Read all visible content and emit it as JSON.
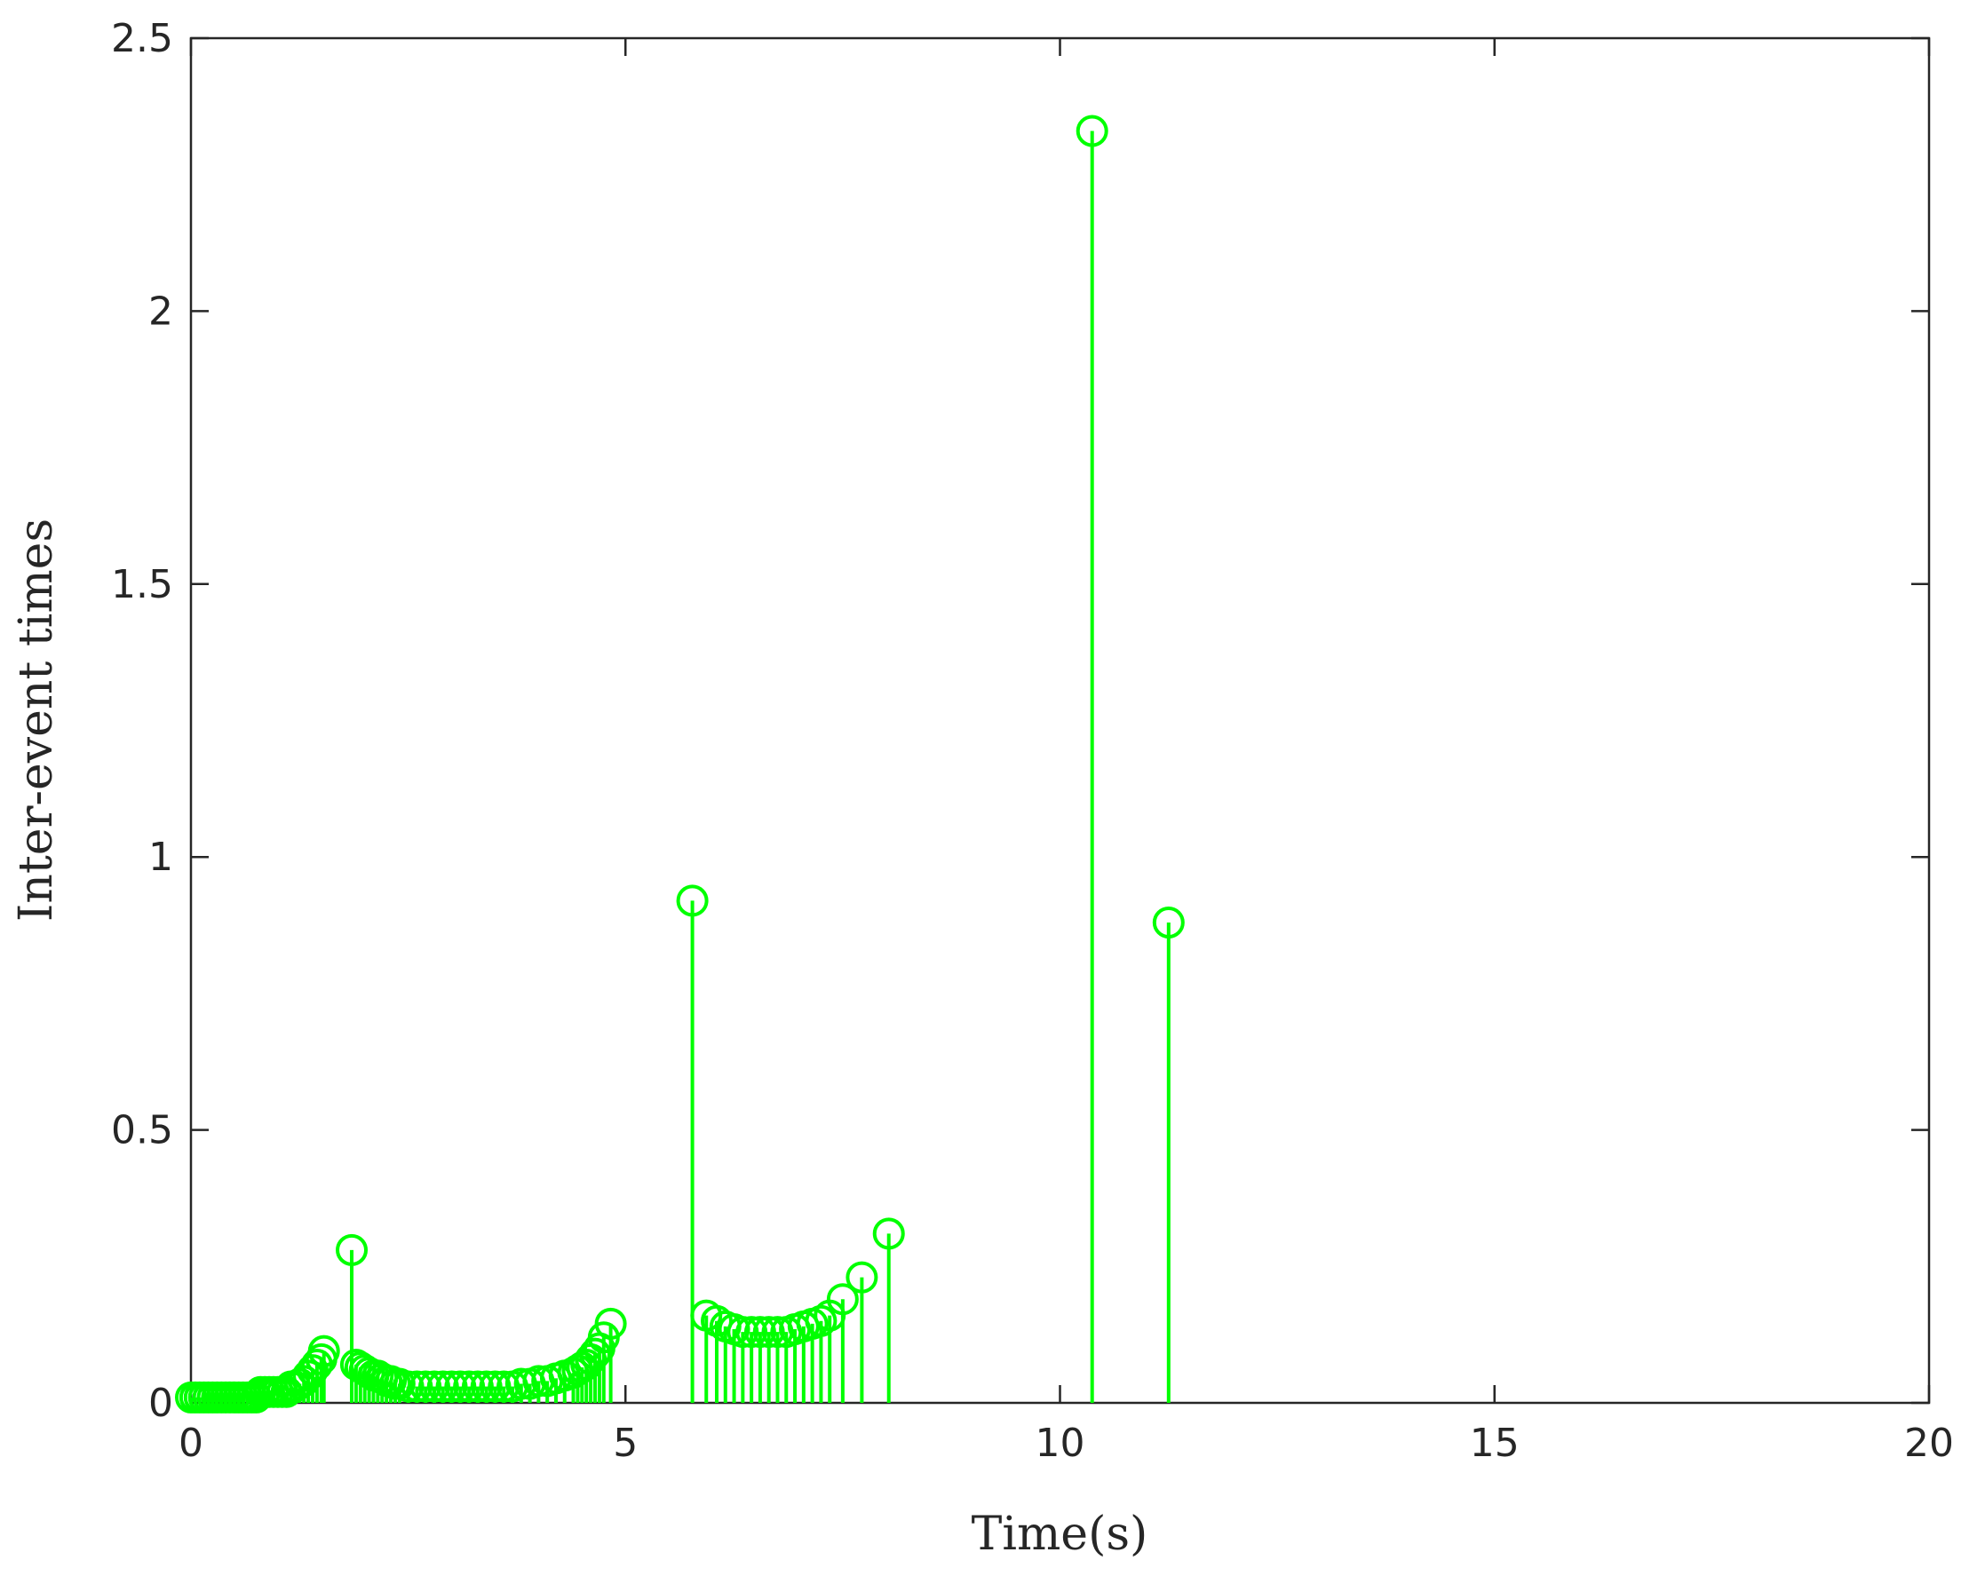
{
  "chart_data": {
    "type": "stem",
    "title": "",
    "xlabel": "Time(s)",
    "ylabel": "Inter-event times",
    "xlim": [
      0,
      20
    ],
    "ylim": [
      0,
      2.5
    ],
    "xticks": [
      0,
      5,
      10,
      15,
      20
    ],
    "xtick_labels": [
      "0",
      "5",
      "10",
      "15",
      "20"
    ],
    "yticks": [
      0,
      0.5,
      1,
      1.5,
      2,
      2.5
    ],
    "ytick_labels": [
      "0",
      "0.5",
      "1",
      "1.5",
      "2",
      "2.5"
    ],
    "grid": false,
    "box": true,
    "marker": "circle",
    "color": "#00ff00",
    "series": [
      {
        "x": [
          0.0,
          0.05,
          0.1,
          0.15,
          0.2,
          0.25,
          0.3,
          0.35,
          0.4,
          0.45,
          0.5,
          0.55,
          0.6,
          0.65,
          0.7,
          0.75,
          0.8,
          0.85,
          0.9,
          0.95,
          1.0,
          1.05,
          1.1,
          1.15,
          1.2,
          1.25,
          1.3,
          1.35,
          1.4,
          1.45,
          1.5,
          1.53,
          1.85,
          1.9,
          1.95,
          2.0,
          2.05,
          2.1,
          2.15,
          2.2,
          2.25,
          2.3,
          2.35,
          2.4,
          2.5,
          2.6,
          2.7,
          2.8,
          2.9,
          3.0,
          3.1,
          3.2,
          3.3,
          3.4,
          3.5,
          3.6,
          3.7,
          3.8,
          3.9,
          4.0,
          4.1,
          4.2,
          4.3,
          4.4,
          4.45,
          4.5,
          4.55,
          4.6,
          4.65,
          4.7,
          4.75,
          4.83,
          5.77,
          5.93,
          6.05,
          6.15,
          6.25,
          6.35,
          6.45,
          6.55,
          6.65,
          6.75,
          6.85,
          6.95,
          7.05,
          7.15,
          7.25,
          7.35,
          7.5,
          7.72,
          8.03,
          10.37,
          11.25
        ],
        "y": [
          0.01,
          0.01,
          0.01,
          0.01,
          0.01,
          0.01,
          0.01,
          0.01,
          0.01,
          0.01,
          0.01,
          0.01,
          0.01,
          0.01,
          0.01,
          0.01,
          0.02,
          0.02,
          0.02,
          0.02,
          0.02,
          0.02,
          0.02,
          0.03,
          0.03,
          0.035,
          0.04,
          0.05,
          0.06,
          0.07,
          0.08,
          0.095,
          0.28,
          0.07,
          0.065,
          0.06,
          0.055,
          0.05,
          0.05,
          0.045,
          0.04,
          0.04,
          0.035,
          0.035,
          0.03,
          0.03,
          0.03,
          0.03,
          0.03,
          0.03,
          0.03,
          0.03,
          0.03,
          0.03,
          0.03,
          0.03,
          0.03,
          0.035,
          0.035,
          0.04,
          0.04,
          0.045,
          0.05,
          0.055,
          0.06,
          0.065,
          0.07,
          0.08,
          0.09,
          0.1,
          0.12,
          0.145,
          0.92,
          0.16,
          0.15,
          0.14,
          0.135,
          0.13,
          0.13,
          0.13,
          0.13,
          0.13,
          0.13,
          0.135,
          0.14,
          0.145,
          0.15,
          0.16,
          0.19,
          0.23,
          0.31,
          2.33,
          0.88
        ]
      }
    ]
  }
}
